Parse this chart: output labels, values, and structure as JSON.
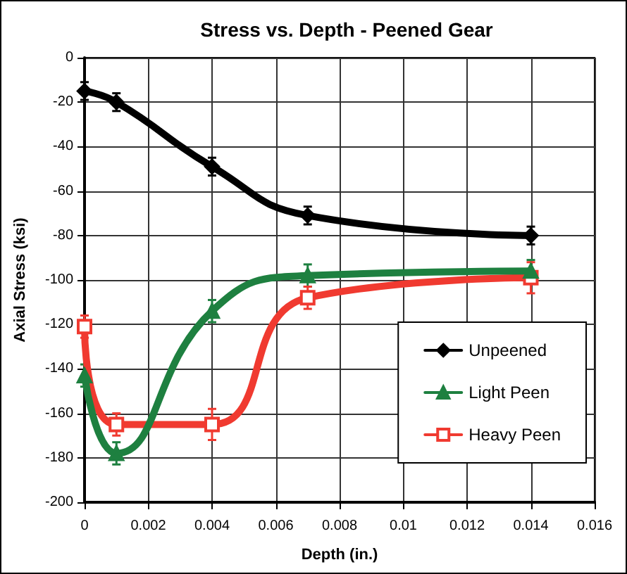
{
  "chart_data": {
    "type": "line",
    "title": "Stress vs. Depth - Peened Gear",
    "xlabel": "Depth (in.)",
    "ylabel": "Axial Stress (ksi)",
    "x": [
      0,
      0.001,
      0.004,
      0.007,
      0.014
    ],
    "series": [
      {
        "name": "Unpeened",
        "color": "#000000",
        "marker": "diamond",
        "values": [
          -15,
          -20,
          -49,
          -71,
          -80
        ],
        "errors": [
          4,
          4,
          4,
          4,
          4
        ]
      },
      {
        "name": "Light Peen",
        "color": "#1e8040",
        "marker": "triangle",
        "values": [
          -143,
          -178,
          -114,
          -98,
          -96
        ],
        "errors": [
          5,
          5,
          5,
          5,
          5
        ]
      },
      {
        "name": "Heavy Peen",
        "color": "#f03a30",
        "marker": "square",
        "values": [
          -121,
          -165,
          -165,
          -108,
          -99
        ],
        "errors": [
          5,
          5,
          7,
          5,
          7
        ]
      }
    ],
    "xlim": [
      0,
      0.016
    ],
    "xticks": [
      0,
      0.002,
      0.004,
      0.006,
      0.008,
      0.01,
      0.012,
      0.014,
      0.016
    ],
    "ylim": [
      -200,
      0
    ],
    "yticks": [
      -200,
      -180,
      -160,
      -140,
      -120,
      -100,
      -80,
      -60,
      -40,
      -20,
      0
    ],
    "grid": true,
    "legend": "bottom right",
    "line_style": "solid"
  }
}
